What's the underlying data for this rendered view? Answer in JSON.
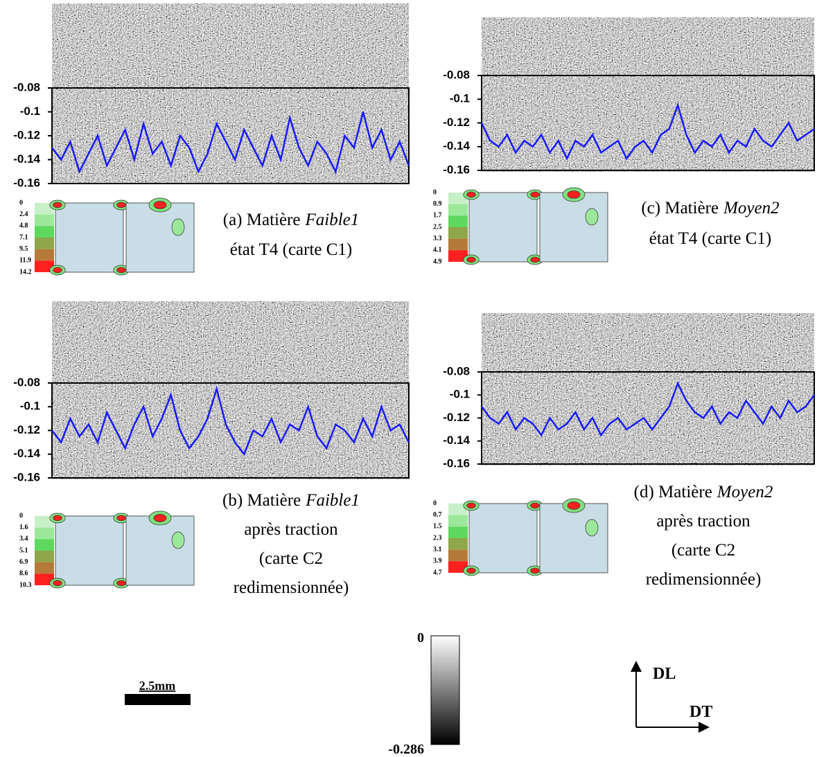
{
  "panels": [
    {
      "caption": {
        "prefix": "(a) Matière",
        "material": "Faible1",
        "lines": [
          "état T4 (carte C1)"
        ]
      },
      "yticks": [
        -0.08,
        -0.1,
        -0.12,
        -0.14,
        -0.16
      ],
      "ylim": [
        -0.16,
        -0.08
      ],
      "profile": {
        "color": "#1a1aff",
        "values": [
          -0.13,
          -0.14,
          -0.125,
          -0.15,
          -0.135,
          -0.12,
          -0.145,
          -0.13,
          -0.115,
          -0.14,
          -0.11,
          -0.135,
          -0.125,
          -0.145,
          -0.12,
          -0.13,
          -0.15,
          -0.135,
          -0.11,
          -0.125,
          -0.14,
          -0.115,
          -0.13,
          -0.145,
          -0.12,
          -0.14,
          -0.105,
          -0.13,
          -0.145,
          -0.125,
          -0.135,
          -0.15,
          -0.12,
          -0.13,
          -0.1,
          -0.13,
          -0.115,
          -0.14,
          -0.125,
          -0.145
        ]
      },
      "pole_levels": [
        0,
        2.4,
        4.8,
        7.1,
        9.5,
        11.9,
        14.2
      ]
    },
    {
      "caption": {
        "prefix": "(b) Matière",
        "material": "Faible1",
        "lines": [
          "après traction",
          "(carte C2",
          "redimensionnée)"
        ]
      },
      "yticks": [
        -0.08,
        -0.1,
        -0.12,
        -0.14,
        -0.16
      ],
      "ylim": [
        -0.16,
        -0.08
      ],
      "profile": {
        "color": "#1a1aff",
        "values": [
          -0.12,
          -0.13,
          -0.11,
          -0.125,
          -0.115,
          -0.13,
          -0.105,
          -0.12,
          -0.135,
          -0.115,
          -0.1,
          -0.125,
          -0.11,
          -0.09,
          -0.12,
          -0.135,
          -0.125,
          -0.11,
          -0.085,
          -0.115,
          -0.13,
          -0.14,
          -0.12,
          -0.125,
          -0.11,
          -0.13,
          -0.115,
          -0.12,
          -0.1,
          -0.125,
          -0.135,
          -0.115,
          -0.12,
          -0.13,
          -0.11,
          -0.125,
          -0.1,
          -0.12,
          -0.115,
          -0.13
        ]
      },
      "pole_levels": [
        0,
        1.6,
        3.4,
        5.1,
        6.9,
        8.6,
        10.3
      ]
    },
    {
      "caption": {
        "prefix": "(c) Matière",
        "material": "Moyen2",
        "lines": [
          "état T4 (carte C1)"
        ]
      },
      "yticks": [
        -0.08,
        -0.1,
        -0.12,
        -0.14,
        -0.16
      ],
      "ylim": [
        -0.16,
        -0.08
      ],
      "profile": {
        "color": "#1a1aff",
        "values": [
          -0.12,
          -0.135,
          -0.14,
          -0.13,
          -0.145,
          -0.135,
          -0.14,
          -0.13,
          -0.145,
          -0.135,
          -0.15,
          -0.135,
          -0.14,
          -0.13,
          -0.145,
          -0.14,
          -0.135,
          -0.15,
          -0.14,
          -0.135,
          -0.145,
          -0.13,
          -0.125,
          -0.105,
          -0.13,
          -0.145,
          -0.135,
          -0.14,
          -0.13,
          -0.145,
          -0.135,
          -0.14,
          -0.125,
          -0.135,
          -0.14,
          -0.13,
          -0.12,
          -0.135,
          -0.13,
          -0.125
        ]
      },
      "pole_levels": [
        0,
        0.9,
        1.7,
        2.5,
        3.3,
        4.1,
        4.9
      ]
    },
    {
      "caption": {
        "prefix": "(d) Matière",
        "material": "Moyen2",
        "lines": [
          "après traction",
          "(carte C2",
          "redimensionnée)"
        ]
      },
      "yticks": [
        -0.08,
        -0.1,
        -0.12,
        -0.14,
        -0.16
      ],
      "ylim": [
        -0.16,
        -0.08
      ],
      "profile": {
        "color": "#1a1aff",
        "values": [
          -0.11,
          -0.12,
          -0.125,
          -0.115,
          -0.13,
          -0.12,
          -0.125,
          -0.135,
          -0.12,
          -0.13,
          -0.125,
          -0.115,
          -0.13,
          -0.12,
          -0.135,
          -0.125,
          -0.12,
          -0.13,
          -0.125,
          -0.12,
          -0.13,
          -0.12,
          -0.11,
          -0.09,
          -0.105,
          -0.115,
          -0.12,
          -0.11,
          -0.125,
          -0.115,
          -0.12,
          -0.105,
          -0.115,
          -0.125,
          -0.11,
          -0.12,
          -0.105,
          -0.115,
          -0.11,
          -0.1
        ]
      },
      "pole_levels": [
        0,
        0.7,
        1.5,
        2.3,
        3.1,
        3.9,
        4.7
      ]
    }
  ],
  "legend_colors": [
    "#c8f0c8",
    "#9be89b",
    "#5fd85f",
    "#8fa64a",
    "#b57a3a",
    "#ff2020"
  ],
  "colorbar": {
    "max": 0,
    "min": -0.286
  },
  "scale_bar": "2.5mm",
  "axes": {
    "vertical": "DL",
    "horizontal": "DT"
  }
}
